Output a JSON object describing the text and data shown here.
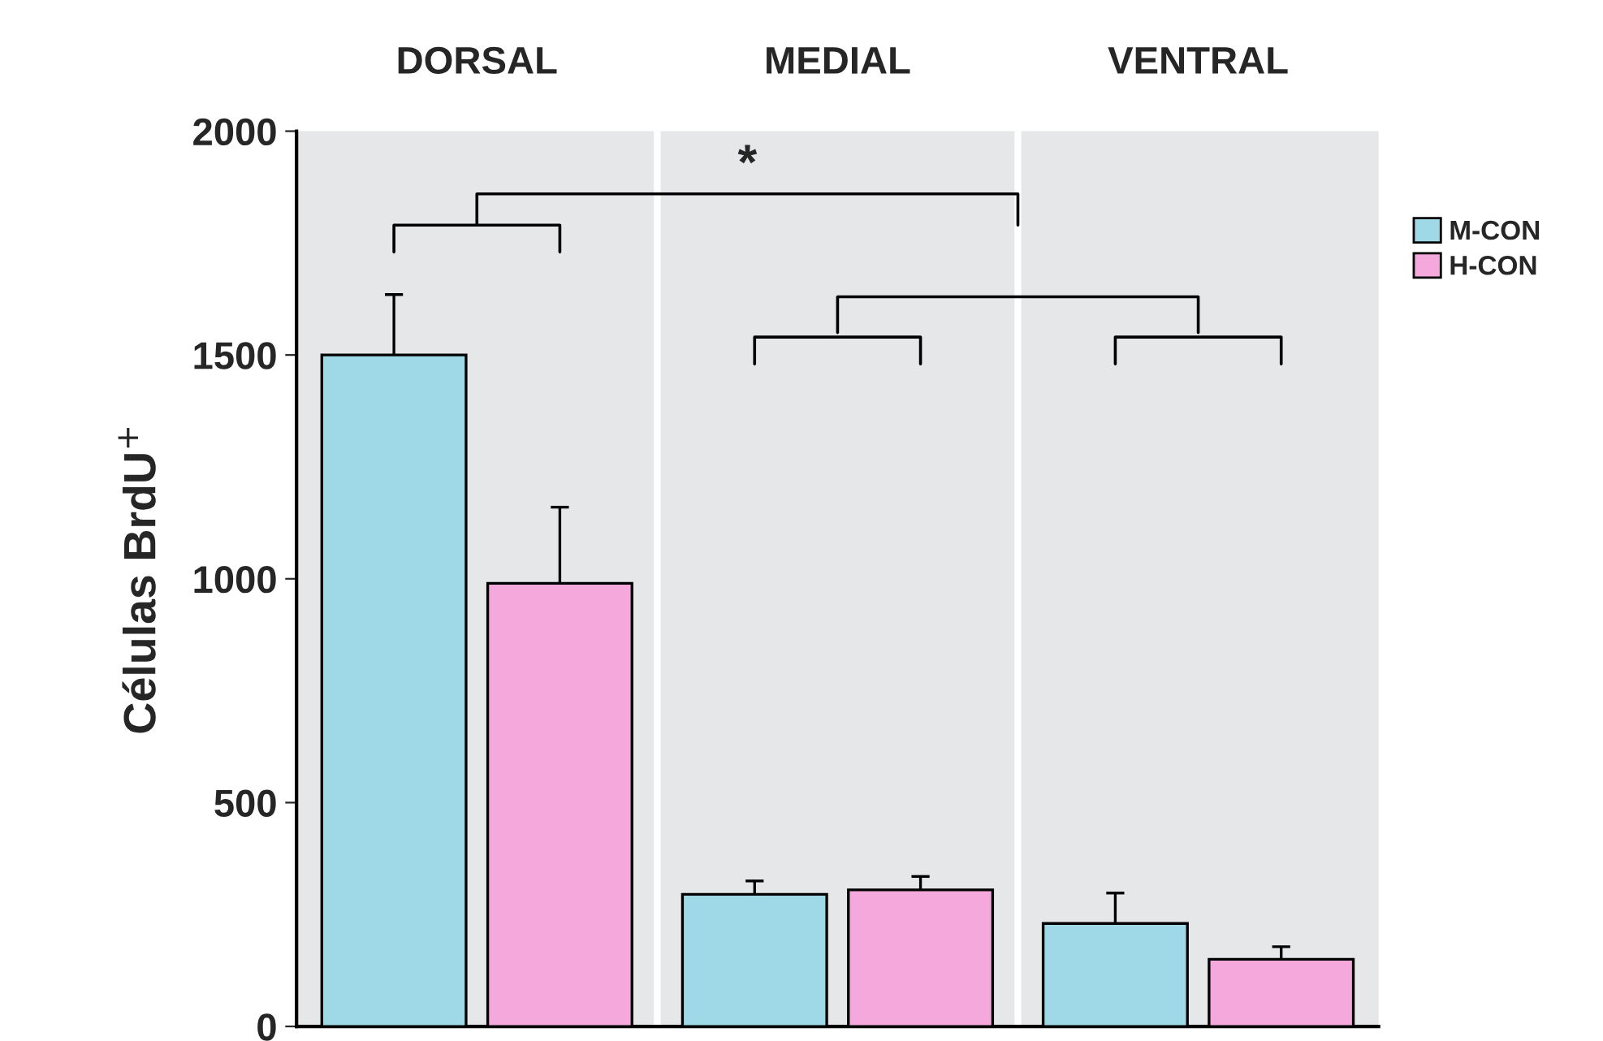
{
  "chart_data": {
    "type": "bar",
    "categories": [
      "DORSAL",
      "MEDIAL",
      "VENTRAL"
    ],
    "ylabel": "Células BrdU$^{+}$",
    "ylim": [
      0,
      2000
    ],
    "yticks": [
      0,
      500,
      1000,
      1500,
      2000
    ],
    "grid": false,
    "legend": "top right",
    "series": [
      {
        "name": "M-CON",
        "color": "#9fd8e6",
        "values": [
          1500,
          295,
          230
        ],
        "errors": [
          135,
          30,
          68
        ]
      },
      {
        "name": "H-CON",
        "color": "#f4a8dc",
        "values": [
          990,
          305,
          150
        ],
        "errors": [
          170,
          30,
          28
        ]
      }
    ],
    "annotations": [
      "*"
    ]
  }
}
